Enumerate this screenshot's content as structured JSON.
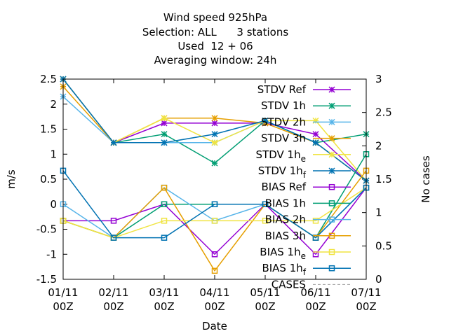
{
  "chart_data": {
    "type": "line",
    "title_lines": [
      "Wind speed 925hPa",
      "Selection: ALL      3 stations",
      "Used  12 + 06",
      "Averaging window: 24h"
    ],
    "xlabel": "Date",
    "ylabel": "m/s",
    "y2label": "No cases",
    "x_ticks": [
      {
        "date": "01/11",
        "hour": "00Z"
      },
      {
        "date": "02/11",
        "hour": "00Z"
      },
      {
        "date": "03/11",
        "hour": "00Z"
      },
      {
        "date": "04/11",
        "hour": "00Z"
      },
      {
        "date": "05/11",
        "hour": "00Z"
      },
      {
        "date": "06/11",
        "hour": "00Z"
      },
      {
        "date": "07/11",
        "hour": "00Z"
      }
    ],
    "ylim": [
      -1.5,
      2.5
    ],
    "y_ticks": [
      "2.5",
      "2",
      "1.5",
      "1",
      "0.5",
      "0",
      "-0.5",
      "-1",
      "-1.5"
    ],
    "y2lim": [
      0,
      3
    ],
    "y2_ticks": [
      "3",
      "2.5",
      "2",
      "1.5",
      "1",
      "0.5",
      "0"
    ],
    "grid": false,
    "legend_position": "top-right",
    "series": [
      {
        "name": "STDV Ref",
        "color": "#9400d3",
        "marker": "star",
        "values": [
          2.5,
          1.23,
          1.62,
          1.62,
          1.62,
          1.4,
          0.47
        ]
      },
      {
        "name": "STDV 1h",
        "color": "#009e73",
        "marker": "star",
        "values": [
          2.5,
          1.23,
          1.4,
          0.82,
          1.67,
          1.23,
          1.4
        ]
      },
      {
        "name": "STDV 2h",
        "color": "#56b4e9",
        "marker": "star",
        "values": [
          2.15,
          1.23,
          1.23,
          1.23,
          1.67,
          1.23,
          0.47
        ]
      },
      {
        "name": "STDV 3h",
        "color": "#e69f00",
        "marker": "star",
        "values": [
          2.35,
          1.23,
          1.72,
          1.72,
          1.62,
          1.23,
          0.47
        ]
      },
      {
        "name": "STDV 1h",
        "sub": "e",
        "color": "#f0e442",
        "marker": "star",
        "values": [
          2.5,
          1.23,
          1.72,
          1.23,
          1.67,
          1.67,
          0.47
        ]
      },
      {
        "name": "STDV 1h",
        "sub": "f",
        "color": "#0072b2",
        "marker": "star",
        "values": [
          2.5,
          1.23,
          1.23,
          1.4,
          1.67,
          1.23,
          0.47
        ]
      },
      {
        "name": "BIAS Ref",
        "color": "#9400d3",
        "marker": "square",
        "values": [
          -0.33,
          -0.33,
          0.0,
          -1.0,
          0.0,
          -1.0,
          0.33
        ]
      },
      {
        "name": "BIAS 1h",
        "color": "#009e73",
        "marker": "square",
        "values": [
          -0.33,
          -0.67,
          0.0,
          0.0,
          0.0,
          -0.67,
          1.0
        ]
      },
      {
        "name": "BIAS 2h",
        "color": "#56b4e9",
        "marker": "square",
        "values": [
          0.0,
          -0.67,
          0.33,
          -0.33,
          0.0,
          -0.67,
          0.33
        ]
      },
      {
        "name": "BIAS 3h",
        "color": "#e69f00",
        "marker": "square",
        "values": [
          -0.33,
          -0.67,
          0.33,
          -1.33,
          0.0,
          -0.67,
          0.67
        ]
      },
      {
        "name": "BIAS 1h",
        "sub": "e",
        "color": "#f0e442",
        "marker": "square",
        "values": [
          -0.33,
          -0.67,
          -0.33,
          -0.33,
          -0.33,
          -0.33,
          0.33
        ]
      },
      {
        "name": "BIAS 1h",
        "sub": "f",
        "color": "#0072b2",
        "marker": "square",
        "values": [
          0.67,
          -0.67,
          -0.67,
          0.0,
          0.0,
          -0.67,
          0.33
        ]
      },
      {
        "name": "CASES",
        "color": "#a0a0a0",
        "marker": "none",
        "dashed": true,
        "axis": "y2",
        "values": []
      }
    ]
  }
}
